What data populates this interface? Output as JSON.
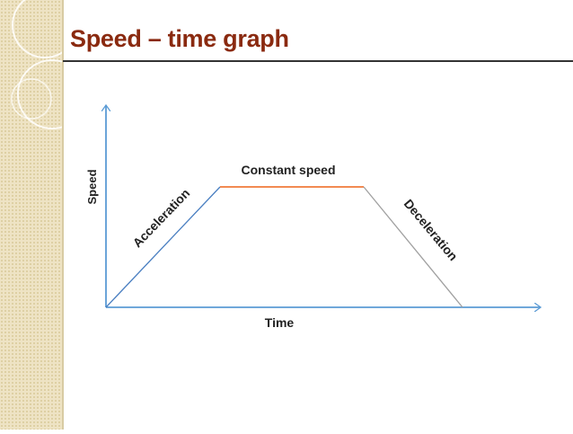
{
  "slide": {
    "title": "Speed – time graph"
  },
  "diagram": {
    "y_axis_label": "Speed",
    "x_axis_label": "Time",
    "segments": {
      "acceleration": "Acceleration",
      "constant": "Constant speed",
      "deceleration": "Deceleration"
    }
  },
  "colors": {
    "title": "#8a2a10",
    "axes": "#5b9bd5",
    "acceleration_line": "#4a7fc1",
    "constant_line": "#f07a3a",
    "deceleration_line": "#a0a0a0",
    "side_strip": "#eee3c4"
  }
}
